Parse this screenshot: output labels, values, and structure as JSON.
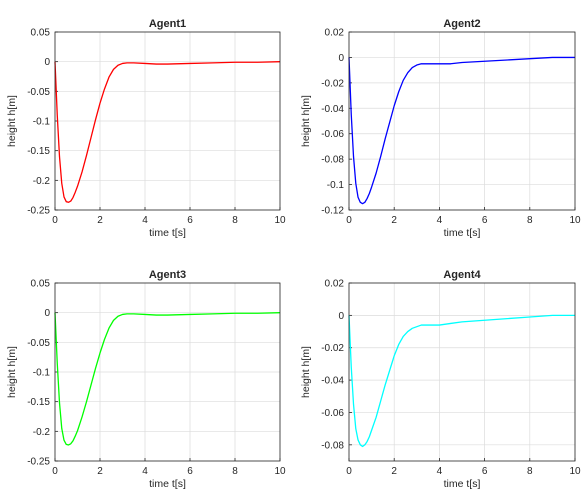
{
  "chart_data": [
    {
      "type": "line",
      "title": "Agent1",
      "xlabel": "time t[s]",
      "ylabel": "height h[m]",
      "xlim": [
        0,
        10
      ],
      "ylim": [
        -0.25,
        0.05
      ],
      "xticks": [
        "0",
        "2",
        "4",
        "6",
        "8",
        "10"
      ],
      "yticks": [
        "0.05",
        "0",
        "-0.05",
        "-0.1",
        "-0.15",
        "-0.2",
        "-0.25"
      ],
      "grid": true,
      "color": "#ff0000",
      "series": [
        {
          "x": [
            0,
            0.1,
            0.2,
            0.3,
            0.4,
            0.5,
            0.6,
            0.7,
            0.8,
            0.9,
            1.0,
            1.2,
            1.4,
            1.6,
            1.8,
            2.0,
            2.2,
            2.4,
            2.6,
            2.8,
            3.0,
            3.2,
            3.5,
            4.0,
            4.5,
            5.0,
            6.0,
            7.0,
            8.0,
            9.0,
            10.0
          ],
          "y": [
            0,
            -0.09,
            -0.16,
            -0.205,
            -0.228,
            -0.236,
            -0.237,
            -0.235,
            -0.229,
            -0.22,
            -0.21,
            -0.186,
            -0.158,
            -0.128,
            -0.098,
            -0.07,
            -0.046,
            -0.026,
            -0.013,
            -0.006,
            -0.003,
            -0.002,
            -0.002,
            -0.003,
            -0.004,
            -0.004,
            -0.003,
            -0.002,
            -0.001,
            -0.001,
            0.0
          ]
        }
      ]
    },
    {
      "type": "line",
      "title": "Agent2",
      "xlabel": "time t[s]",
      "ylabel": "height h[m]",
      "xlim": [
        0,
        10
      ],
      "ylim": [
        -0.12,
        0.02
      ],
      "xticks": [
        "0",
        "2",
        "4",
        "6",
        "8",
        "10"
      ],
      "yticks": [
        "0.02",
        "0",
        "-0.02",
        "-0.04",
        "-0.06",
        "-0.08",
        "-0.1",
        "-0.12"
      ],
      "grid": true,
      "color": "#0000ff",
      "series": [
        {
          "x": [
            0,
            0.1,
            0.2,
            0.3,
            0.4,
            0.5,
            0.6,
            0.7,
            0.8,
            0.9,
            1.0,
            1.2,
            1.4,
            1.6,
            1.8,
            2.0,
            2.2,
            2.4,
            2.6,
            2.8,
            3.0,
            3.2,
            3.5,
            4.0,
            4.5,
            5.0,
            6.0,
            7.0,
            8.0,
            9.0,
            10.0
          ],
          "y": [
            0,
            -0.045,
            -0.078,
            -0.099,
            -0.11,
            -0.114,
            -0.115,
            -0.114,
            -0.111,
            -0.107,
            -0.102,
            -0.091,
            -0.078,
            -0.064,
            -0.051,
            -0.038,
            -0.027,
            -0.018,
            -0.012,
            -0.008,
            -0.006,
            -0.005,
            -0.005,
            -0.005,
            -0.005,
            -0.004,
            -0.003,
            -0.002,
            -0.001,
            0.0,
            0.0
          ]
        }
      ]
    },
    {
      "type": "line",
      "title": "Agent3",
      "xlabel": "time t[s]",
      "ylabel": "height h[m]",
      "xlim": [
        0,
        10
      ],
      "ylim": [
        -0.25,
        0.05
      ],
      "xticks": [
        "0",
        "2",
        "4",
        "6",
        "8",
        "10"
      ],
      "yticks": [
        "0.05",
        "0",
        "-0.05",
        "-0.1",
        "-0.15",
        "-0.2",
        "-0.25"
      ],
      "grid": true,
      "color": "#00ff00",
      "series": [
        {
          "x": [
            0,
            0.1,
            0.2,
            0.3,
            0.4,
            0.5,
            0.6,
            0.7,
            0.8,
            0.9,
            1.0,
            1.2,
            1.4,
            1.6,
            1.8,
            2.0,
            2.2,
            2.4,
            2.6,
            2.8,
            3.0,
            3.2,
            3.5,
            4.0,
            4.5,
            5.0,
            6.0,
            7.0,
            8.0,
            9.0,
            10.0
          ],
          "y": [
            0,
            -0.085,
            -0.152,
            -0.195,
            -0.215,
            -0.222,
            -0.223,
            -0.221,
            -0.216,
            -0.208,
            -0.199,
            -0.176,
            -0.15,
            -0.122,
            -0.094,
            -0.068,
            -0.045,
            -0.026,
            -0.013,
            -0.006,
            -0.003,
            -0.002,
            -0.002,
            -0.003,
            -0.004,
            -0.004,
            -0.003,
            -0.002,
            -0.001,
            -0.001,
            0.0
          ]
        }
      ]
    },
    {
      "type": "line",
      "title": "Agent4",
      "xlabel": "time t[s]",
      "ylabel": "height h[m]",
      "xlim": [
        0,
        10
      ],
      "ylim": [
        -0.09,
        0.02
      ],
      "xticks": [
        "0",
        "2",
        "4",
        "6",
        "8",
        "10"
      ],
      "yticks": [
        "0.02",
        "0",
        "-0.02",
        "-0.04",
        "-0.06",
        "-0.08"
      ],
      "grid": true,
      "color": "#00ffff",
      "series": [
        {
          "x": [
            0,
            0.1,
            0.2,
            0.3,
            0.4,
            0.5,
            0.6,
            0.7,
            0.8,
            0.9,
            1.0,
            1.2,
            1.4,
            1.6,
            1.8,
            2.0,
            2.2,
            2.4,
            2.6,
            2.8,
            3.0,
            3.2,
            3.5,
            4.0,
            4.5,
            5.0,
            6.0,
            7.0,
            8.0,
            9.0,
            10.0
          ],
          "y": [
            0,
            -0.032,
            -0.055,
            -0.07,
            -0.077,
            -0.08,
            -0.081,
            -0.08,
            -0.078,
            -0.075,
            -0.071,
            -0.063,
            -0.053,
            -0.043,
            -0.034,
            -0.025,
            -0.018,
            -0.013,
            -0.01,
            -0.008,
            -0.007,
            -0.006,
            -0.006,
            -0.006,
            -0.005,
            -0.004,
            -0.003,
            -0.002,
            -0.001,
            0.0,
            0.0
          ]
        }
      ]
    }
  ]
}
